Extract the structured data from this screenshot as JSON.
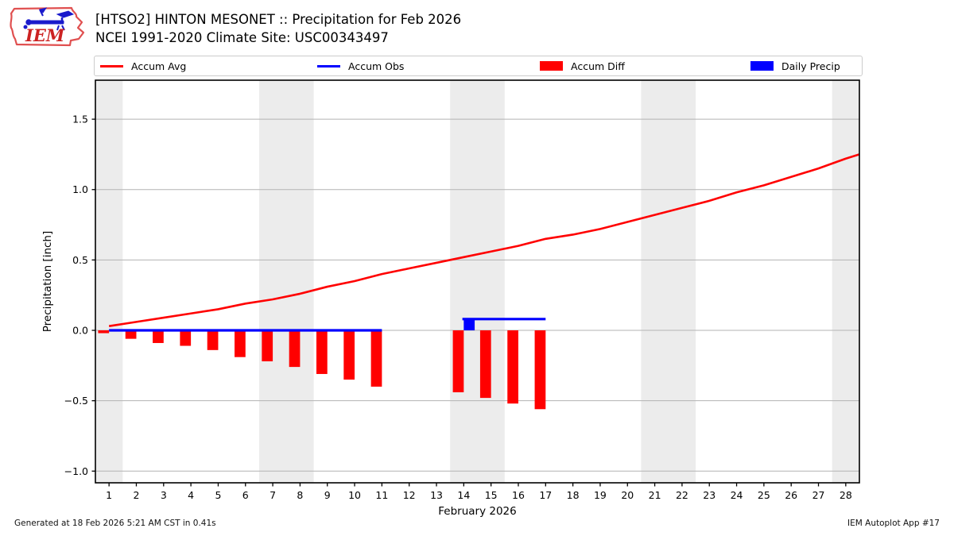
{
  "header": {
    "title_line1": "[HTSO2] HINTON MESONET :: Precipitation for Feb 2026",
    "title_line2": "NCEI 1991-2020 Climate Site: USC00343497"
  },
  "logo": {
    "text": "IEM"
  },
  "legend": [
    {
      "label": "Accum Avg",
      "type": "line",
      "color": "#ff0000"
    },
    {
      "label": "Accum Obs",
      "type": "line",
      "color": "#0000ff"
    },
    {
      "label": "Accum Diff",
      "type": "patch",
      "color": "#ff0000"
    },
    {
      "label": "Daily Precip",
      "type": "patch",
      "color": "#0000ff"
    }
  ],
  "footer": {
    "left": "Generated at 18 Feb 2026 5:21 AM CST in 0.41s",
    "right": "IEM Autoplot App #17"
  },
  "chart_data": {
    "type": "line+bar",
    "title": "[HTSO2] HINTON MESONET :: Precipitation for Feb 2026",
    "subtitle": "NCEI 1991-2020 Climate Site: USC00343497",
    "xlabel": "February 2026",
    "ylabel": "Precipitation [inch]",
    "xlim": [
      0.5,
      28.5
    ],
    "ylim": [
      -1.083,
      1.777
    ],
    "xticks": [
      1,
      2,
      3,
      4,
      5,
      6,
      7,
      8,
      9,
      10,
      11,
      12,
      13,
      14,
      15,
      16,
      17,
      18,
      19,
      20,
      21,
      22,
      23,
      24,
      25,
      26,
      27,
      28
    ],
    "yticks": [
      -1.0,
      -0.5,
      0.0,
      0.5,
      1.0,
      1.5
    ],
    "grid": "horizontal",
    "weekend_band_color": "#ececec",
    "gridline_color": "#b3b3b3",
    "weekend_bands": [
      [
        0.5,
        1.5
      ],
      [
        6.5,
        8.5
      ],
      [
        13.5,
        15.5
      ],
      [
        20.5,
        22.5
      ],
      [
        27.5,
        28.5
      ]
    ],
    "series": [
      {
        "name": "Accum Avg",
        "type": "line",
        "color": "#ff0000",
        "width": 2.6,
        "x": [
          1,
          2,
          3,
          4,
          5,
          6,
          7,
          8,
          9,
          10,
          11,
          12,
          13,
          14,
          15,
          16,
          17,
          18,
          19,
          20,
          21,
          22,
          23,
          24,
          25,
          26,
          27,
          28,
          28.5
        ],
        "y": [
          0.03,
          0.06,
          0.09,
          0.12,
          0.15,
          0.19,
          0.22,
          0.26,
          0.31,
          0.35,
          0.4,
          0.44,
          0.48,
          0.52,
          0.56,
          0.6,
          0.65,
          0.68,
          0.72,
          0.77,
          0.82,
          0.87,
          0.92,
          0.98,
          1.03,
          1.09,
          1.15,
          1.22,
          1.25
        ]
      },
      {
        "name": "Accum Obs",
        "type": "line",
        "color": "#0000ff",
        "width": 3.2,
        "segments": [
          {
            "x1": 1.0,
            "x2": 11.0,
            "y": 0.0
          },
          {
            "x1": 13.95,
            "x2": 17.0,
            "y": 0.08
          }
        ]
      },
      {
        "name": "Accum Diff",
        "type": "bar",
        "color": "#ff0000",
        "bar_offset": [
          -0.4,
          0.0
        ],
        "x": [
          1,
          2,
          3,
          4,
          5,
          6,
          7,
          8,
          9,
          10,
          11,
          14,
          15,
          16,
          17
        ],
        "y": [
          -0.02,
          -0.06,
          -0.09,
          -0.11,
          -0.14,
          -0.19,
          -0.22,
          -0.26,
          -0.31,
          -0.35,
          -0.4,
          -0.44,
          -0.48,
          -0.52,
          -0.56
        ]
      },
      {
        "name": "Daily Precip",
        "type": "bar",
        "color": "#0000ff",
        "bar_offset": [
          0.0,
          0.4
        ],
        "x": [
          14
        ],
        "y": [
          0.08
        ]
      }
    ]
  }
}
